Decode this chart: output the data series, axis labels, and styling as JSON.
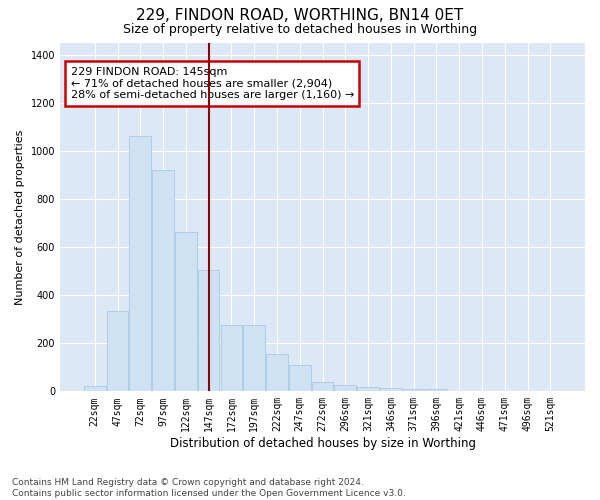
{
  "title": "229, FINDON ROAD, WORTHING, BN14 0ET",
  "subtitle": "Size of property relative to detached houses in Worthing",
  "xlabel": "Distribution of detached houses by size in Worthing",
  "ylabel": "Number of detached properties",
  "categories": [
    "22sqm",
    "47sqm",
    "72sqm",
    "97sqm",
    "122sqm",
    "147sqm",
    "172sqm",
    "197sqm",
    "222sqm",
    "247sqm",
    "272sqm",
    "296sqm",
    "321sqm",
    "346sqm",
    "371sqm",
    "396sqm",
    "421sqm",
    "446sqm",
    "471sqm",
    "496sqm",
    "521sqm"
  ],
  "values": [
    22,
    333,
    1062,
    921,
    663,
    505,
    275,
    275,
    155,
    108,
    40,
    26,
    20,
    12,
    10,
    10,
    0,
    0,
    0,
    0,
    0
  ],
  "bar_color": "#cfe2f3",
  "bar_edge_color": "#a8c8e8",
  "vline_index": 5,
  "vline_color": "#8b0000",
  "annotation_text": "229 FINDON ROAD: 145sqm\n← 71% of detached houses are smaller (2,904)\n28% of semi-detached houses are larger (1,160) →",
  "annotation_box_edgecolor": "#cc0000",
  "ylim_max": 1450,
  "background_color": "#dce8f5",
  "grid_color": "#ffffff",
  "footer_text": "Contains HM Land Registry data © Crown copyright and database right 2024.\nContains public sector information licensed under the Open Government Licence v3.0.",
  "title_fontsize": 11,
  "subtitle_fontsize": 9,
  "xlabel_fontsize": 8.5,
  "ylabel_fontsize": 8,
  "tick_fontsize": 7,
  "annotation_fontsize": 8,
  "footer_fontsize": 6.5
}
